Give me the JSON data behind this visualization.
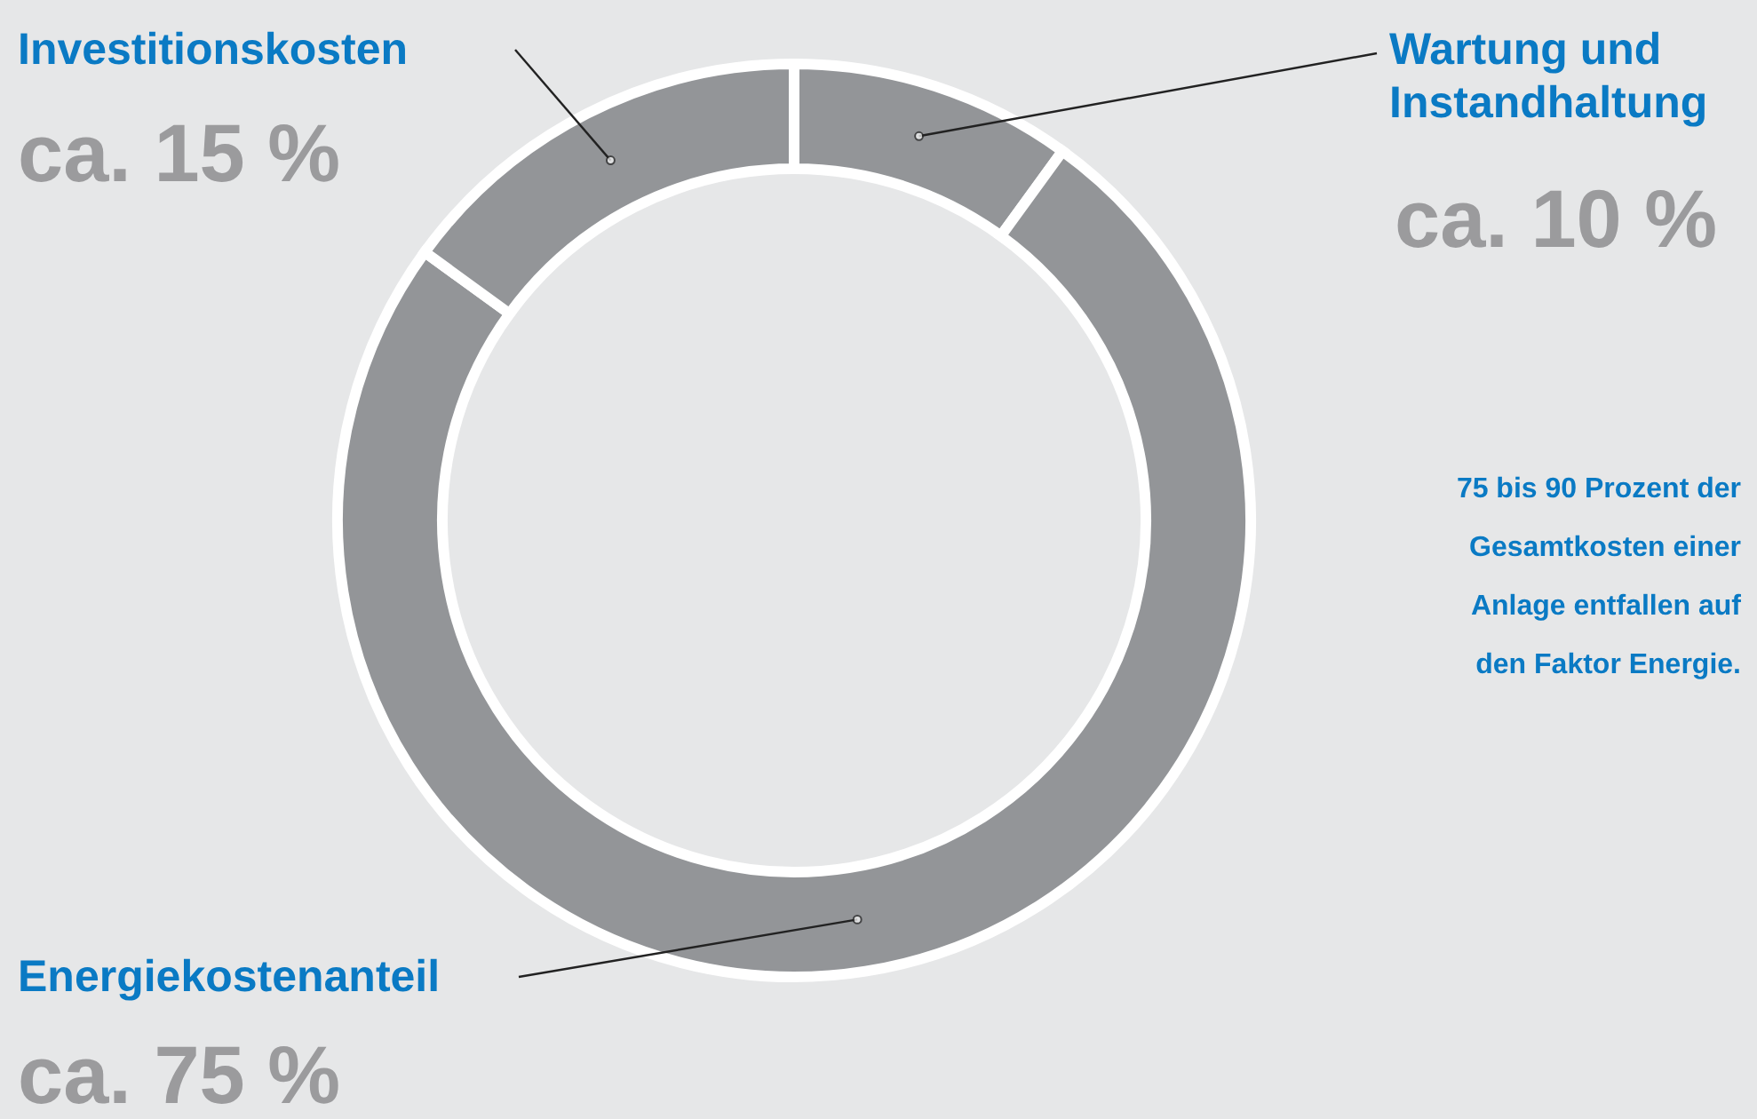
{
  "chart_data": {
    "type": "donut",
    "categories": [
      "Wartung und\nInstandhaltung",
      "Energiekostenanteil",
      "Investitionskosten"
    ],
    "values": [
      10,
      75,
      15
    ],
    "colors": [
      "#939598",
      "#939598",
      "#939598"
    ],
    "value_labels": [
      "ca. 10 %",
      "ca. 75 %",
      "ca. 15 %"
    ],
    "annotations": [
      "75 bis 90 Prozent der\nGesamtkosten einer\nAnlage entfallen auf\nden Faktor Energie."
    ]
  }
}
